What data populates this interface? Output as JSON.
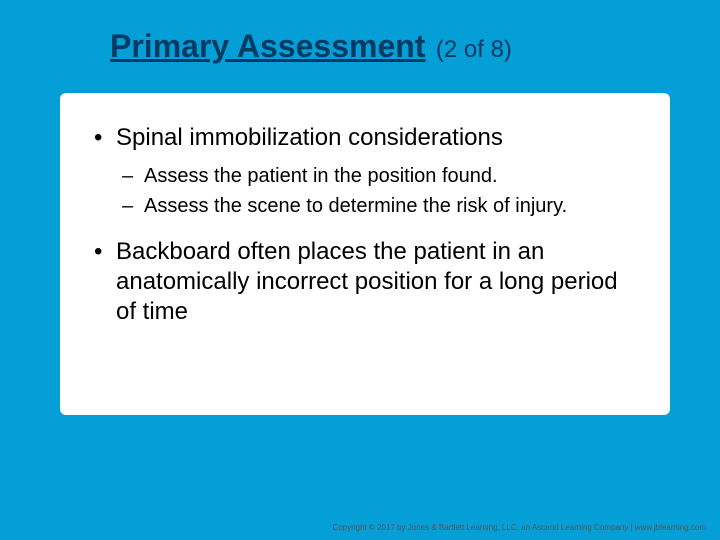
{
  "colors": {
    "slide_bg": "#059fd8",
    "content_bg": "#ffffff",
    "title_color": "#003b63",
    "text_color": "#000000",
    "footer_color": "#555555"
  },
  "title": {
    "main": "Primary Assessment",
    "counter": "(2 of 8)"
  },
  "bullets": [
    {
      "text": "Spinal immobilization considerations",
      "sub": [
        "Assess the patient in the position found.",
        "Assess the scene to determine the risk of injury."
      ]
    },
    {
      "text": "Backboard often places the patient in an anatomically incorrect position for a long period of time",
      "sub": []
    }
  ],
  "footer": "Copyright © 2017 by Jones & Bartlett Learning, LLC, an Ascend Learning Company | www.jblearning.com"
}
